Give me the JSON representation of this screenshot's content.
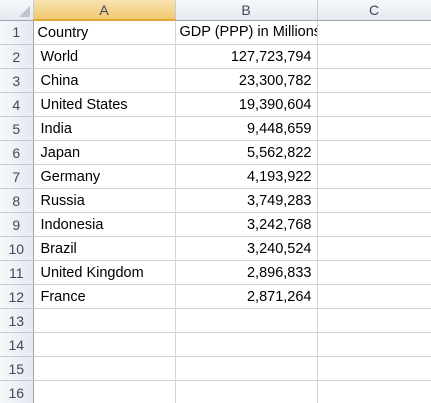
{
  "columns": [
    "A",
    "B",
    "C"
  ],
  "rows": [
    {
      "num": "1",
      "a": "Country",
      "b": "GDP (PPP) in Millions of Int $",
      "c": ""
    },
    {
      "num": "2",
      "a": "World",
      "b": "127,723,794",
      "c": ""
    },
    {
      "num": "3",
      "a": "China",
      "b": "23,300,782",
      "c": ""
    },
    {
      "num": "4",
      "a": "United States",
      "b": "19,390,604",
      "c": ""
    },
    {
      "num": "5",
      "a": "India",
      "b": "9,448,659",
      "c": ""
    },
    {
      "num": "6",
      "a": "Japan",
      "b": "5,562,822",
      "c": ""
    },
    {
      "num": "7",
      "a": "Germany",
      "b": "4,193,922",
      "c": ""
    },
    {
      "num": "8",
      "a": "Russia",
      "b": "3,749,283",
      "c": ""
    },
    {
      "num": "9",
      "a": "Indonesia",
      "b": "3,242,768",
      "c": ""
    },
    {
      "num": "10",
      "a": "Brazil",
      "b": "3,240,524",
      "c": ""
    },
    {
      "num": "11",
      "a": "United Kingdom",
      "b": "2,896,833",
      "c": ""
    },
    {
      "num": "12",
      "a": "France",
      "b": "2,871,264",
      "c": ""
    },
    {
      "num": "13",
      "a": "",
      "b": "",
      "c": ""
    },
    {
      "num": "14",
      "a": "",
      "b": "",
      "c": ""
    },
    {
      "num": "15",
      "a": "",
      "b": "",
      "c": ""
    },
    {
      "num": "16",
      "a": "",
      "b": "",
      "c": ""
    }
  ]
}
